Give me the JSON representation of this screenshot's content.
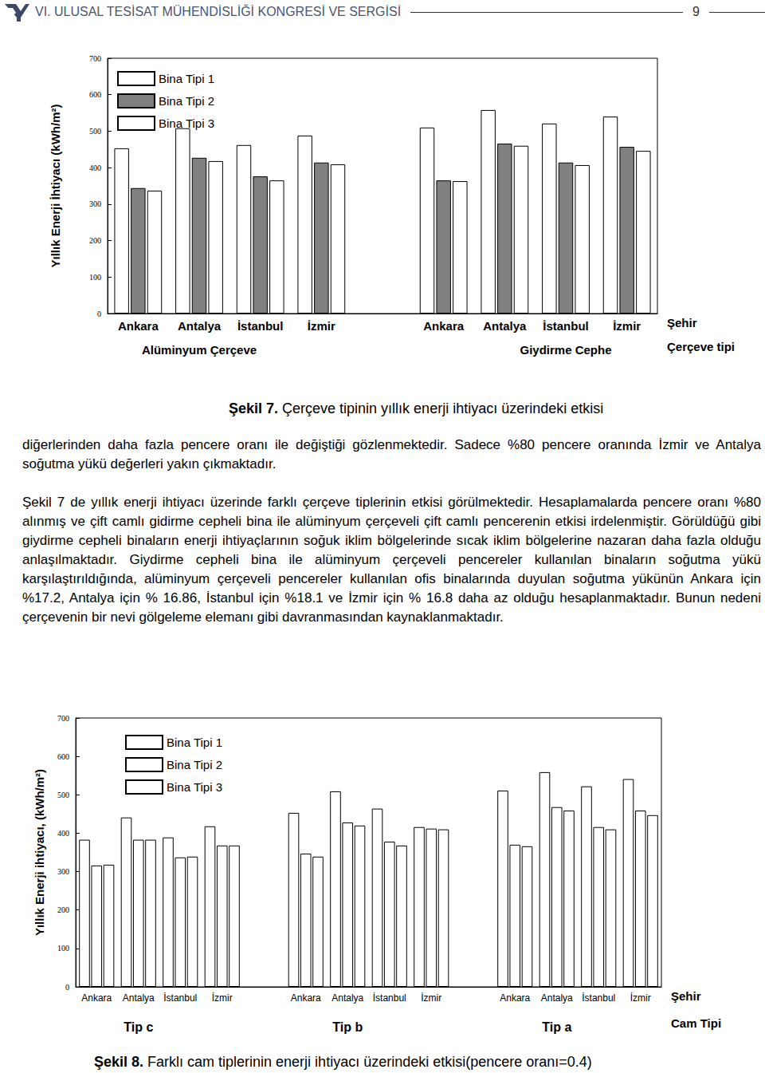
{
  "header": {
    "title": "VI. ULUSAL TESİSAT MÜHENDİSLİĞİ KONGRESİ VE SERGİSİ",
    "page": "9"
  },
  "chart_data": [
    {
      "type": "bar",
      "ylabel": "Yıllık Enerji İhtiyacı (kWh/m²)",
      "xlabel": "Şehir",
      "group_label": "Çerçeve tipi",
      "categories": [
        "Ankara",
        "Antalya",
        "İstanbul",
        "İzmir",
        null,
        "Ankara",
        "Antalya",
        "İstanbul",
        "İzmir"
      ],
      "groups": [
        null,
        "Alüminyum Çerçeve",
        null,
        null,
        null,
        null,
        null,
        "Giydirme Cephe",
        null
      ],
      "series": [
        {
          "name": "Bina Tipi 1",
          "color": "#ffffff",
          "values": [
            453,
            508,
            462,
            488,
            null,
            510,
            558,
            521,
            540
          ]
        },
        {
          "name": "Bina Tipi 2",
          "color": "#808080",
          "values": [
            344,
            427,
            376,
            414,
            null,
            365,
            466,
            414,
            457
          ]
        },
        {
          "name": "Bina Tipi 3",
          "color": "#ffffff",
          "values": [
            337,
            418,
            365,
            409,
            null,
            363,
            460,
            407,
            446
          ]
        }
      ],
      "ylim": [
        0,
        700
      ],
      "yticks": [
        0,
        100,
        200,
        300,
        400,
        500,
        600,
        700
      ],
      "grid": false,
      "legend": "upper left",
      "caption": {
        "label": "Şekil 7.",
        "text": "Çerçeve tipinin yıllık enerji ihtiyacı üzerindeki etkisi"
      }
    },
    {
      "type": "bar",
      "ylabel": "Yıllık Enerji ihtiyacı, (kWh/m²)",
      "xlabel": "Şehir",
      "group_label": "Cam Tipi",
      "categories": [
        "Ankara",
        "Antalya",
        "İstanbul",
        "İzmir",
        null,
        "Ankara",
        "Antalya",
        "İstanbul",
        "İzmir",
        null,
        "Ankara",
        "Antalya",
        "İstanbul",
        "İzmir"
      ],
      "groups": [
        null,
        "Tip c",
        null,
        null,
        null,
        null,
        "Tip b",
        null,
        null,
        null,
        null,
        "Tip a",
        null,
        null
      ],
      "series": [
        {
          "name": "Bina Tipi 1",
          "color": "#ffffff",
          "values": [
            383,
            441,
            389,
            418,
            null,
            453,
            509,
            464,
            416,
            null,
            511,
            559,
            522,
            541
          ]
        },
        {
          "name": "Bina Tipi 2",
          "color": "#ffffff",
          "values": [
            316,
            383,
            337,
            368,
            null,
            347,
            428,
            378,
            412,
            null,
            370,
            468,
            416,
            459
          ]
        },
        {
          "name": "Bina Tipi 3",
          "color": "#ffffff",
          "values": [
            318,
            383,
            339,
            368,
            null,
            339,
            420,
            368,
            410,
            null,
            366,
            459,
            410,
            447
          ]
        }
      ],
      "ylim": [
        0,
        700
      ],
      "yticks": [
        0,
        100,
        200,
        300,
        400,
        500,
        600,
        700
      ],
      "grid": false,
      "legend": "upper left",
      "caption": {
        "label": "Şekil 8.",
        "text": "Farklı cam tiplerinin enerji ihtiyacı üzerindeki etkisi(pencere oranı=0.4)"
      }
    }
  ],
  "paragraphs": [
    "diğerlerinden daha fazla pencere oranı ile değiştiği gözlenmektedir.  Sadece %80 pencere oranında İzmir ve Antalya soğutma yükü değerleri yakın çıkmaktadır.",
    "Şekil 7 de yıllık enerji ihtiyacı üzerinde farklı çerçeve tiplerinin etkisi görülmektedir. Hesaplamalarda pencere oranı %80 alınmış ve çift camlı gidirme cepheli bina ile alüminyum çerçeveli çift camlı pencerenin etkisi irdelenmiştir. Görüldüğü gibi giydirme cepheli binaların enerji ihtiyaçlarının soğuk iklim bölgelerinde sıcak iklim bölgelerine nazaran daha fazla olduğu anlaşılmaktadır. Giydirme cepheli bina ile alüminyum çerçeveli pencereler kullanılan binaların soğutma yükü karşılaştırıldığında, alüminyum çerçeveli pencereler kullanılan ofis binalarında duyulan soğutma yükünün Ankara için %17.2, Antalya için % 16.86, İstanbul için %18.1 ve İzmir için % 16.8 daha az olduğu hesaplanmaktadır.  Bunun nedeni çerçevenin bir nevi gölgeleme elemanı gibi davranmasından kaynaklanmaktadır."
  ]
}
